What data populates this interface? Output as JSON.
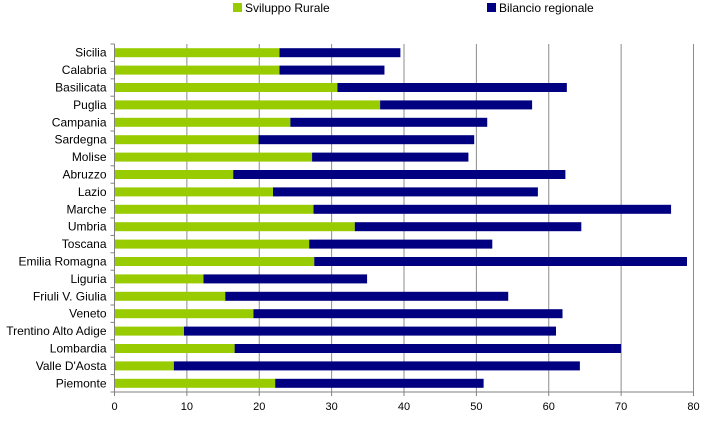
{
  "chart_data": {
    "type": "bar",
    "orientation": "horizontal",
    "stacked": true,
    "categories": [
      "Sicilia",
      "Calabria",
      "Basilicata",
      "Puglia",
      "Campania",
      "Sardegna",
      "Molise",
      "Abruzzo",
      "Lazio",
      "Marche",
      "Umbria",
      "Toscana",
      "Emilia Romagna",
      "Liguria",
      "Friuli V. Giulia",
      "Veneto",
      "Trentino Alto Adige",
      "Lombardia",
      "Valle D'Aosta",
      "Piemonte"
    ],
    "series": [
      {
        "name": "Sviluppo Rurale",
        "color": "#99cc00",
        "values": [
          22.8,
          22.8,
          30.8,
          36.7,
          24.3,
          19.9,
          27.3,
          16.4,
          21.9,
          27.5,
          33.2,
          26.9,
          27.6,
          12.3,
          15.3,
          19.2,
          9.6,
          16.6,
          8.2,
          22.2
        ]
      },
      {
        "name": "Bilancio regionale",
        "color": "#000080",
        "values": [
          16.7,
          14.5,
          31.7,
          21.0,
          27.2,
          29.8,
          21.6,
          45.9,
          36.6,
          49.4,
          31.3,
          25.3,
          51.5,
          22.6,
          39.1,
          42.7,
          51.4,
          53.4,
          56.1,
          28.8
        ]
      }
    ],
    "xlim": [
      0,
      80
    ],
    "xticks": [
      0,
      10,
      20,
      30,
      40,
      50,
      60,
      70,
      80
    ],
    "legend_position": "top",
    "grid": true
  }
}
